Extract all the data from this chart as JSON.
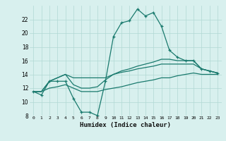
{
  "xlabel": "Humidex (Indice chaleur)",
  "x_values": [
    0,
    1,
    2,
    3,
    4,
    5,
    6,
    7,
    8,
    9,
    10,
    11,
    12,
    13,
    14,
    15,
    16,
    17,
    18,
    19,
    20,
    21,
    22,
    23
  ],
  "line1_y": [
    11.5,
    11.0,
    13.0,
    13.0,
    13.0,
    10.5,
    8.5,
    8.5,
    8.0,
    13.0,
    19.5,
    21.5,
    21.8,
    23.5,
    22.5,
    23.0,
    21.0,
    17.5,
    16.5,
    16.0,
    16.0,
    14.8,
    14.5,
    14.2
  ],
  "line2_y": [
    11.5,
    11.5,
    13.0,
    13.5,
    14.0,
    13.5,
    13.5,
    13.5,
    13.5,
    13.5,
    14.0,
    14.3,
    14.5,
    14.8,
    15.0,
    15.2,
    15.5,
    15.5,
    15.5,
    15.5,
    15.5,
    14.8,
    14.5,
    14.2
  ],
  "line3_y": [
    11.5,
    11.5,
    13.0,
    13.5,
    14.0,
    12.5,
    12.0,
    12.0,
    12.2,
    13.2,
    14.0,
    14.5,
    14.8,
    15.2,
    15.5,
    15.8,
    16.2,
    16.2,
    16.0,
    16.0,
    16.0,
    14.8,
    14.5,
    14.2
  ],
  "line4_y": [
    11.5,
    11.5,
    12.0,
    12.2,
    12.5,
    12.0,
    11.5,
    11.5,
    11.5,
    11.8,
    12.0,
    12.2,
    12.5,
    12.8,
    13.0,
    13.2,
    13.5,
    13.5,
    13.8,
    14.0,
    14.2,
    14.0,
    14.0,
    14.0
  ],
  "line_color": "#1a7a6e",
  "bg_color": "#d8f0ee",
  "grid_color": "#b0d8d4",
  "ylim": [
    8,
    24
  ],
  "xlim": [
    -0.5,
    23.5
  ],
  "yticks": [
    8,
    10,
    12,
    14,
    16,
    18,
    20,
    22
  ],
  "xticks": [
    0,
    1,
    2,
    3,
    4,
    5,
    6,
    7,
    8,
    9,
    10,
    11,
    12,
    13,
    14,
    15,
    16,
    17,
    18,
    19,
    20,
    21,
    22,
    23
  ]
}
